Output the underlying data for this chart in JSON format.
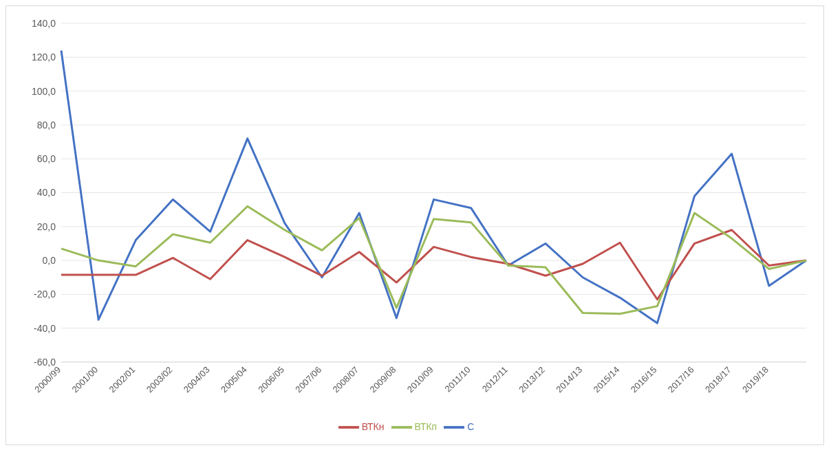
{
  "chart_data": {
    "type": "line",
    "categories": [
      "2000/99",
      "2001/00",
      "2002/01",
      "2003/02",
      "2004/03",
      "2005/04",
      "2006/05",
      "2007/06",
      "2008/07",
      "2009/08",
      "2010/09",
      "2011/10",
      "2012/11",
      "2013/12",
      "2014/13",
      "2015/14",
      "2016/15",
      "2017/16",
      "2018/17",
      "2019/18",
      null
    ],
    "series": [
      {
        "name": "С",
        "color": "#4472c4",
        "values": [
          124,
          -35,
          12,
          36,
          17,
          72,
          22,
          -10,
          28,
          -34,
          36,
          31,
          -3,
          10,
          -10,
          -22,
          -37,
          38,
          63,
          -15,
          0
        ]
      },
      {
        "name": "ВТКн",
        "color": "#c0504d",
        "values": [
          -8.5,
          -8.5,
          -8.5,
          1.5,
          -11,
          12,
          2,
          -9,
          5,
          -13,
          8,
          2,
          -2,
          -9,
          -2,
          10.5,
          -23,
          10,
          18,
          -3,
          0
        ]
      },
      {
        "name": "ВТКп",
        "color": "#9bbb59",
        "values": [
          7,
          0,
          -3.5,
          15.5,
          10.5,
          32,
          18,
          6,
          25,
          -28,
          24.5,
          22.5,
          -3,
          -4,
          -31,
          -31.5,
          -27,
          28,
          13,
          -5,
          0
        ]
      }
    ],
    "ylim": [
      -60,
      140
    ],
    "yticks": [
      {
        "value": -60,
        "label": "-60,0"
      },
      {
        "value": -40,
        "label": "-40,0"
      },
      {
        "value": -20,
        "label": "-20,0"
      },
      {
        "value": 0,
        "label": "0,0"
      },
      {
        "value": 20,
        "label": "20,0"
      },
      {
        "value": 40,
        "label": "40,0"
      },
      {
        "value": 60,
        "label": "60,0"
      },
      {
        "value": 80,
        "label": "80,0"
      },
      {
        "value": 100,
        "label": "100,0"
      },
      {
        "value": 120,
        "label": "120,0"
      },
      {
        "value": 140,
        "label": "140,0"
      }
    ],
    "grid": "y",
    "legend": "bottom",
    "marker": "none",
    "line_style": "solid"
  }
}
